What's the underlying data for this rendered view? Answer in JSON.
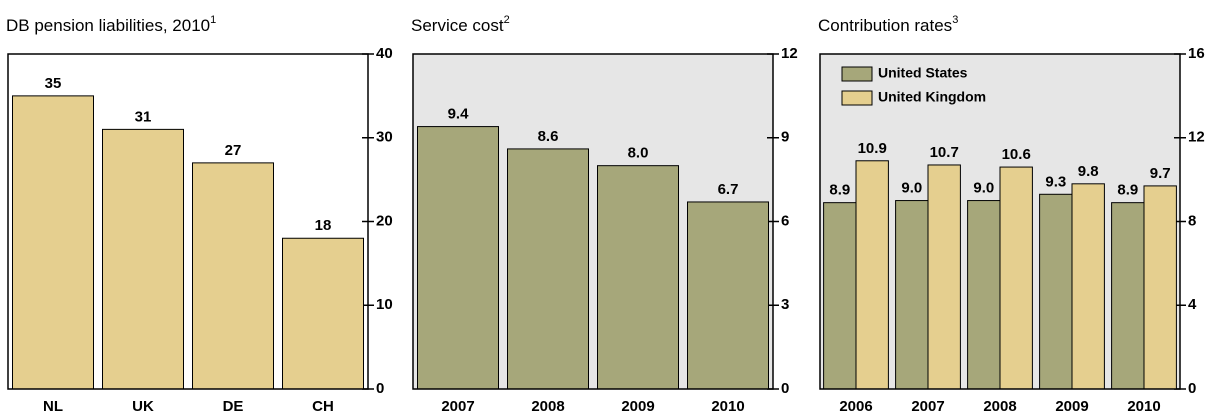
{
  "chart_data": [
    {
      "type": "bar",
      "title": "DB pension liabilities, 2010",
      "footnote_mark": "1",
      "categories": [
        "NL",
        "UK",
        "DE",
        "CH"
      ],
      "values": [
        35,
        31,
        27,
        18
      ],
      "color": "#e5cf8f",
      "background": "#ffffff",
      "ylim": [
        0,
        40
      ],
      "yticks": [
        0,
        10,
        20,
        30,
        40
      ],
      "grid": false
    },
    {
      "type": "bar",
      "title": "Service cost",
      "footnote_mark": "2",
      "categories": [
        "2007",
        "2008",
        "2009",
        "2010"
      ],
      "values": [
        9.4,
        8.6,
        8.0,
        6.7
      ],
      "value_labels": [
        "9.4",
        "8.6",
        "8.0",
        "6.7"
      ],
      "color": "#a6a77a",
      "background": "#e6e6e6",
      "ylim": [
        0,
        12
      ],
      "yticks": [
        0,
        3,
        6,
        9,
        12
      ],
      "grid": false
    },
    {
      "type": "grouped_bar",
      "title": "Contribution rates",
      "footnote_mark": "3",
      "categories": [
        "2006",
        "2007",
        "2008",
        "2009",
        "2010"
      ],
      "series": [
        {
          "name": "United States",
          "color": "#a6a77a",
          "values": [
            8.9,
            9.0,
            9.0,
            9.3,
            8.9
          ],
          "value_labels": [
            "8.9",
            "9.0",
            "9.0",
            "9.3",
            "8.9"
          ]
        },
        {
          "name": "United Kingdom",
          "color": "#e5cf8f",
          "values": [
            10.9,
            10.7,
            10.6,
            9.8,
            9.7
          ],
          "value_labels": [
            "10.9",
            "10.7",
            "10.6",
            "9.8",
            "9.7"
          ]
        }
      ],
      "background": "#e6e6e6",
      "ylim": [
        0,
        16
      ],
      "yticks": [
        0,
        4,
        8,
        12,
        16
      ],
      "grid": false,
      "legend": "top-left"
    }
  ]
}
